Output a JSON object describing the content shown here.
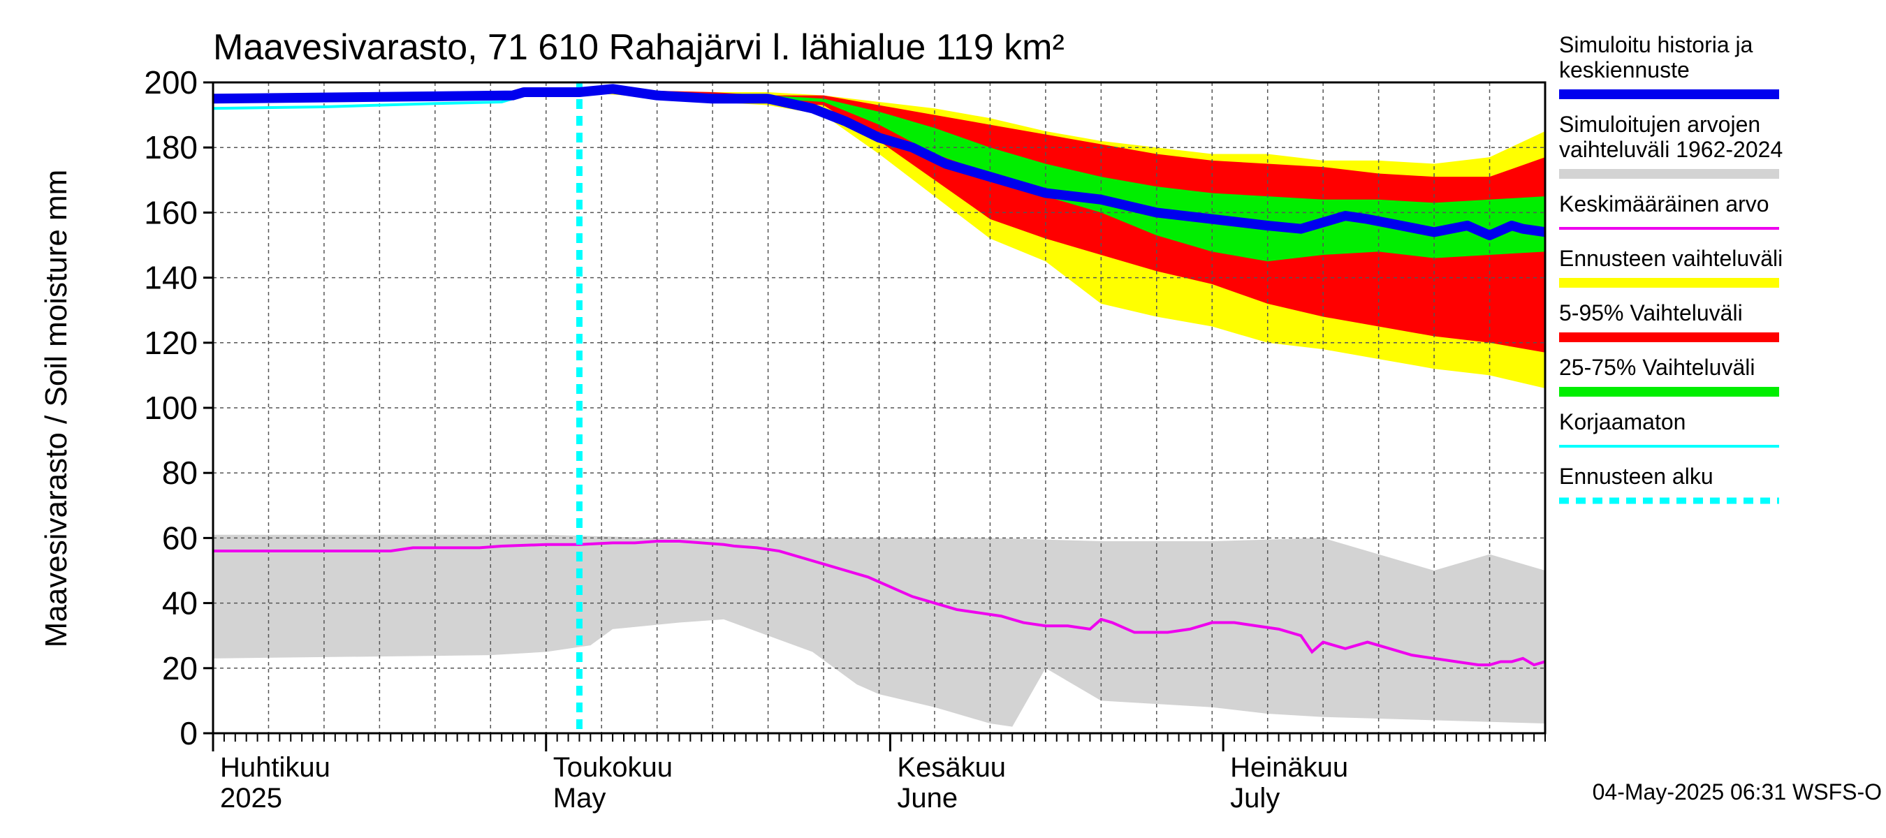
{
  "chart_data": {
    "type": "area",
    "title": "Maavesivarasto, 71 610 Rahajärvi l. lähialue 119 km²",
    "ylabel": "Maavesivarasto / Soil moisture   mm",
    "ylim": [
      0,
      200
    ],
    "yticks": [
      0,
      20,
      40,
      60,
      80,
      100,
      120,
      140,
      160,
      180,
      200
    ],
    "xlim_days": [
      0,
      120
    ],
    "forecast_start_day": 33,
    "months": [
      {
        "fi": "Huhtikuu",
        "en": "2025",
        "day": 0
      },
      {
        "fi": "Toukokuu",
        "en": "May",
        "day": 30
      },
      {
        "fi": "Kesäkuu",
        "en": "June",
        "day": 61
      },
      {
        "fi": "Heinäkuu",
        "en": "July",
        "day": 91
      }
    ],
    "footer": "04-May-2025 06:31 WSFS-O",
    "legend": [
      {
        "label": "Simuloitu historia ja\nkeskiennuste",
        "color": "#0000ee",
        "style": "thick"
      },
      {
        "label": "Simuloitujen arvojen\nvaihteluväli 1962-2024",
        "color": "#d3d3d3",
        "style": "band"
      },
      {
        "label": "Keskimääräinen arvo",
        "color": "#ee00ee",
        "style": "line"
      },
      {
        "label": "Ennusteen vaihteluväli",
        "color": "#ffff00",
        "style": "band"
      },
      {
        "label": "5-95% Vaihteluväli",
        "color": "#ff0000",
        "style": "band"
      },
      {
        "label": "25-75% Vaihteluväli",
        "color": "#00ee00",
        "style": "band"
      },
      {
        "label": "Korjaamaton",
        "color": "#00ffff",
        "style": "line"
      },
      {
        "label": "Ennusteen alku",
        "color": "#00ffff",
        "style": "dashed"
      }
    ],
    "series": [
      {
        "name": "Simuloitu historia ja keskiennuste",
        "x": [
          0,
          27,
          28,
          33,
          36,
          40,
          45,
          50,
          54,
          57,
          60,
          63,
          66,
          70,
          75,
          80,
          85,
          90,
          95,
          98,
          102,
          104,
          107,
          110,
          113,
          115,
          117,
          118,
          120
        ],
        "y": [
          195,
          196,
          197,
          197,
          198,
          196,
          195,
          195,
          192,
          188,
          183,
          180,
          175,
          171,
          166,
          164,
          160,
          158,
          156,
          155,
          159,
          158,
          156,
          154,
          156,
          153,
          156,
          155,
          154
        ]
      },
      {
        "name": "Korjaamaton",
        "x": [
          0,
          10,
          20,
          26,
          27,
          28
        ],
        "y": [
          192,
          192.5,
          193.5,
          194,
          195,
          197
        ]
      },
      {
        "name": "Keskimääräinen arvo",
        "x": [
          0,
          16,
          18,
          24,
          26,
          30,
          33,
          36,
          38,
          40,
          42,
          44,
          46,
          47,
          49,
          51,
          53,
          55,
          57,
          59,
          61,
          63,
          65,
          67,
          69,
          71,
          72,
          73,
          75,
          77,
          79,
          80,
          81,
          83,
          84,
          86,
          88,
          90,
          92,
          94,
          96,
          98,
          99,
          100,
          101,
          102,
          104,
          106,
          108,
          110,
          112,
          114,
          115,
          116,
          117,
          118,
          119,
          120
        ],
        "y": [
          56,
          56,
          57,
          57,
          57.5,
          58,
          58,
          58.5,
          58.5,
          59,
          59,
          58.5,
          58,
          57.5,
          57,
          56,
          54,
          52,
          50,
          48,
          45,
          42,
          40,
          38,
          37,
          36,
          35,
          34,
          33,
          33,
          32,
          35,
          34,
          31,
          31,
          31,
          32,
          34,
          34,
          33,
          32,
          30,
          25,
          28,
          27,
          26,
          28,
          26,
          24,
          23,
          22,
          21,
          21,
          22,
          22,
          23,
          21,
          22
        ]
      },
      {
        "name": "Simuloitujen arvojen vaihteluväli 1962-2024 (upper)",
        "x": [
          0,
          30,
          40,
          60,
          70,
          80,
          90,
          100,
          105,
          110,
          115,
          120
        ],
        "y": [
          61,
          61,
          60,
          60,
          60,
          59,
          59,
          60,
          55,
          50,
          55,
          50
        ]
      },
      {
        "name": "Simuloitujen arvojen vaihteluväli 1962-2024 (lower)",
        "x": [
          0,
          25,
          30,
          34,
          36,
          42,
          46,
          50,
          54,
          58,
          60,
          65,
          70,
          72,
          75,
          80,
          90,
          95,
          100,
          110,
          120
        ],
        "y": [
          23,
          24,
          25,
          27,
          32,
          34,
          35,
          30,
          25,
          15,
          12,
          8,
          3,
          2,
          20,
          10,
          8,
          6,
          5,
          4,
          3
        ]
      }
    ],
    "bands": [
      {
        "name": "Ennusteen vaihteluväli",
        "x": [
          33,
          45,
          50,
          55,
          60,
          65,
          70,
          75,
          80,
          85,
          90,
          95,
          100,
          105,
          110,
          115,
          120
        ],
        "upper": [
          198,
          197,
          197,
          196,
          194,
          192,
          189,
          185,
          182,
          180,
          178,
          178,
          176,
          176,
          175,
          177,
          185
        ],
        "lower": [
          197,
          194,
          193,
          190,
          178,
          165,
          152,
          145,
          132,
          128,
          125,
          120,
          118,
          115,
          112,
          110,
          106
        ]
      },
      {
        "name": "5-95% Vaihteluväli",
        "x": [
          33,
          45,
          50,
          55,
          60,
          65,
          70,
          75,
          80,
          85,
          90,
          95,
          100,
          105,
          110,
          115,
          120
        ],
        "upper": [
          198,
          197,
          196,
          196,
          193,
          190,
          187,
          184,
          181,
          178,
          176,
          175,
          174,
          172,
          171,
          171,
          177
        ],
        "lower": [
          197,
          195,
          194,
          193,
          182,
          170,
          158,
          152,
          147,
          142,
          138,
          132,
          128,
          125,
          122,
          120,
          117
        ]
      },
      {
        "name": "25-75% Vaihteluväli",
        "x": [
          33,
          45,
          50,
          55,
          60,
          65,
          70,
          75,
          80,
          85,
          90,
          95,
          100,
          105,
          110,
          115,
          120
        ],
        "upper": [
          198,
          196.5,
          196,
          195,
          191,
          186,
          180,
          175,
          171,
          168,
          166,
          165,
          164,
          164,
          163,
          164,
          165
        ],
        "lower": [
          197,
          195.5,
          195,
          194,
          187,
          178,
          172,
          165,
          160,
          153,
          148,
          145,
          147,
          148,
          146,
          147,
          148
        ]
      }
    ]
  }
}
